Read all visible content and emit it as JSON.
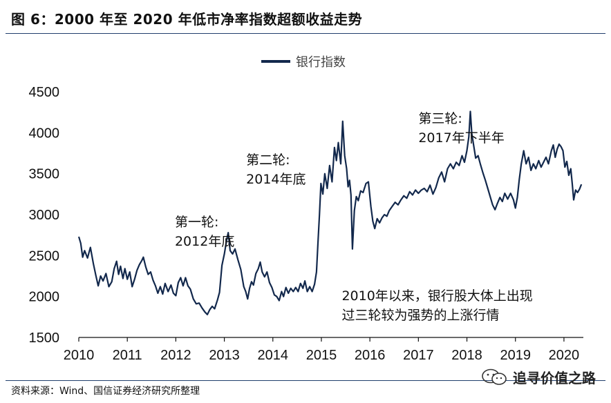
{
  "figure": {
    "title": "图 6：2000 年至 2020 年低市净率指数超额收益走势",
    "source": "资料来源：Wind、国信证券经济研究所整理",
    "watermark": "追寻价值之路",
    "watermark_icon": "wechat-icon"
  },
  "chart_data": {
    "type": "line",
    "title": "",
    "xlabel": "",
    "ylabel": "",
    "xlim": [
      2010,
      2020.4
    ],
    "ylim": [
      1500,
      4500
    ],
    "x_ticks": [
      "2010",
      "2011",
      "2012",
      "2013",
      "2014",
      "2015",
      "2016",
      "2017",
      "2018",
      "2019",
      "2020"
    ],
    "y_ticks": [
      "1500",
      "2000",
      "2500",
      "3000",
      "3500",
      "4000",
      "4500"
    ],
    "grid": false,
    "legend_position": "top-center",
    "series": [
      {
        "name": "银行指数",
        "color": "#12284c",
        "points": [
          [
            2010.0,
            2730
          ],
          [
            2010.04,
            2650
          ],
          [
            2010.08,
            2480
          ],
          [
            2010.12,
            2560
          ],
          [
            2010.18,
            2470
          ],
          [
            2010.24,
            2600
          ],
          [
            2010.3,
            2400
          ],
          [
            2010.35,
            2260
          ],
          [
            2010.4,
            2130
          ],
          [
            2010.45,
            2250
          ],
          [
            2010.5,
            2190
          ],
          [
            2010.56,
            2280
          ],
          [
            2010.62,
            2120
          ],
          [
            2010.68,
            2180
          ],
          [
            2010.73,
            2340
          ],
          [
            2010.78,
            2430
          ],
          [
            2010.82,
            2270
          ],
          [
            2010.86,
            2370
          ],
          [
            2010.91,
            2220
          ],
          [
            2010.95,
            2340
          ],
          [
            2011.0,
            2210
          ],
          [
            2011.05,
            2300
          ],
          [
            2011.1,
            2120
          ],
          [
            2011.15,
            2210
          ],
          [
            2011.2,
            2320
          ],
          [
            2011.25,
            2390
          ],
          [
            2011.3,
            2440
          ],
          [
            2011.33,
            2480
          ],
          [
            2011.38,
            2360
          ],
          [
            2011.43,
            2270
          ],
          [
            2011.48,
            2300
          ],
          [
            2011.53,
            2200
          ],
          [
            2011.58,
            2130
          ],
          [
            2011.63,
            2040
          ],
          [
            2011.68,
            2120
          ],
          [
            2011.73,
            2030
          ],
          [
            2011.78,
            2160
          ],
          [
            2011.84,
            2060
          ],
          [
            2011.9,
            2140
          ],
          [
            2011.95,
            2040
          ],
          [
            2012.0,
            2010
          ],
          [
            2012.05,
            2170
          ],
          [
            2012.1,
            2230
          ],
          [
            2012.15,
            2130
          ],
          [
            2012.2,
            2230
          ],
          [
            2012.25,
            2130
          ],
          [
            2012.3,
            2090
          ],
          [
            2012.36,
            1970
          ],
          [
            2012.42,
            1910
          ],
          [
            2012.48,
            1920
          ],
          [
            2012.54,
            1860
          ],
          [
            2012.6,
            1810
          ],
          [
            2012.65,
            1780
          ],
          [
            2012.7,
            1840
          ],
          [
            2012.75,
            1880
          ],
          [
            2012.8,
            1850
          ],
          [
            2012.86,
            1960
          ],
          [
            2012.9,
            2050
          ],
          [
            2012.95,
            2380
          ],
          [
            2013.0,
            2520
          ],
          [
            2013.05,
            2700
          ],
          [
            2013.08,
            2780
          ],
          [
            2013.12,
            2560
          ],
          [
            2013.17,
            2520
          ],
          [
            2013.22,
            2580
          ],
          [
            2013.28,
            2450
          ],
          [
            2013.34,
            2330
          ],
          [
            2013.4,
            2120
          ],
          [
            2013.44,
            2060
          ],
          [
            2013.48,
            1970
          ],
          [
            2013.52,
            2100
          ],
          [
            2013.56,
            2180
          ],
          [
            2013.6,
            2140
          ],
          [
            2013.65,
            2280
          ],
          [
            2013.7,
            2340
          ],
          [
            2013.74,
            2420
          ],
          [
            2013.78,
            2300
          ],
          [
            2013.83,
            2240
          ],
          [
            2013.88,
            2300
          ],
          [
            2013.93,
            2170
          ],
          [
            2013.98,
            2110
          ],
          [
            2014.03,
            2020
          ],
          [
            2014.08,
            2000
          ],
          [
            2014.13,
            1950
          ],
          [
            2014.18,
            2060
          ],
          [
            2014.22,
            2000
          ],
          [
            2014.27,
            2110
          ],
          [
            2014.32,
            2040
          ],
          [
            2014.37,
            2100
          ],
          [
            2014.42,
            2060
          ],
          [
            2014.47,
            2110
          ],
          [
            2014.52,
            2060
          ],
          [
            2014.57,
            2160
          ],
          [
            2014.62,
            2100
          ],
          [
            2014.66,
            2190
          ],
          [
            2014.71,
            2060
          ],
          [
            2014.76,
            2120
          ],
          [
            2014.81,
            2060
          ],
          [
            2014.86,
            2150
          ],
          [
            2014.9,
            2300
          ],
          [
            2014.93,
            2650
          ],
          [
            2014.96,
            3000
          ],
          [
            2014.99,
            3380
          ],
          [
            2015.03,
            3250
          ],
          [
            2015.07,
            3500
          ],
          [
            2015.12,
            3320
          ],
          [
            2015.17,
            3600
          ],
          [
            2015.22,
            3400
          ],
          [
            2015.27,
            3820
          ],
          [
            2015.31,
            3660
          ],
          [
            2015.35,
            3880
          ],
          [
            2015.4,
            3620
          ],
          [
            2015.44,
            4140
          ],
          [
            2015.48,
            3720
          ],
          [
            2015.52,
            3560
          ],
          [
            2015.55,
            3340
          ],
          [
            2015.58,
            3420
          ],
          [
            2015.61,
            3240
          ],
          [
            2015.64,
            2580
          ],
          [
            2015.68,
            3050
          ],
          [
            2015.72,
            3220
          ],
          [
            2015.76,
            3170
          ],
          [
            2015.81,
            3290
          ],
          [
            2015.86,
            3270
          ],
          [
            2015.92,
            3380
          ],
          [
            2015.97,
            3400
          ],
          [
            2016.02,
            3100
          ],
          [
            2016.06,
            2920
          ],
          [
            2016.1,
            2830
          ],
          [
            2016.15,
            2950
          ],
          [
            2016.2,
            2900
          ],
          [
            2016.25,
            2960
          ],
          [
            2016.3,
            3000
          ],
          [
            2016.35,
            2980
          ],
          [
            2016.4,
            3050
          ],
          [
            2016.46,
            3100
          ],
          [
            2016.52,
            3150
          ],
          [
            2016.58,
            3120
          ],
          [
            2016.64,
            3180
          ],
          [
            2016.7,
            3230
          ],
          [
            2016.76,
            3200
          ],
          [
            2016.82,
            3280
          ],
          [
            2016.88,
            3240
          ],
          [
            2016.94,
            3300
          ],
          [
            2017.0,
            3260
          ],
          [
            2017.06,
            3300
          ],
          [
            2017.12,
            3320
          ],
          [
            2017.18,
            3280
          ],
          [
            2017.24,
            3360
          ],
          [
            2017.3,
            3250
          ],
          [
            2017.36,
            3330
          ],
          [
            2017.42,
            3450
          ],
          [
            2017.48,
            3520
          ],
          [
            2017.54,
            3400
          ],
          [
            2017.6,
            3560
          ],
          [
            2017.66,
            3620
          ],
          [
            2017.72,
            3560
          ],
          [
            2017.78,
            3640
          ],
          [
            2017.84,
            3600
          ],
          [
            2017.9,
            3720
          ],
          [
            2017.95,
            3640
          ],
          [
            2018.0,
            3780
          ],
          [
            2018.04,
            3950
          ],
          [
            2018.07,
            4260
          ],
          [
            2018.1,
            3990
          ],
          [
            2018.14,
            3840
          ],
          [
            2018.18,
            3690
          ],
          [
            2018.23,
            3720
          ],
          [
            2018.28,
            3610
          ],
          [
            2018.33,
            3510
          ],
          [
            2018.38,
            3420
          ],
          [
            2018.43,
            3320
          ],
          [
            2018.48,
            3220
          ],
          [
            2018.53,
            3120
          ],
          [
            2018.58,
            3060
          ],
          [
            2018.63,
            3140
          ],
          [
            2018.68,
            3210
          ],
          [
            2018.73,
            3160
          ],
          [
            2018.78,
            3260
          ],
          [
            2018.84,
            3190
          ],
          [
            2018.9,
            3260
          ],
          [
            2018.96,
            3180
          ],
          [
            2019.0,
            3080
          ],
          [
            2019.04,
            3210
          ],
          [
            2019.08,
            3430
          ],
          [
            2019.12,
            3620
          ],
          [
            2019.17,
            3780
          ],
          [
            2019.22,
            3620
          ],
          [
            2019.27,
            3700
          ],
          [
            2019.32,
            3540
          ],
          [
            2019.37,
            3620
          ],
          [
            2019.42,
            3560
          ],
          [
            2019.48,
            3660
          ],
          [
            2019.53,
            3580
          ],
          [
            2019.58,
            3640
          ],
          [
            2019.63,
            3700
          ],
          [
            2019.68,
            3620
          ],
          [
            2019.74,
            3780
          ],
          [
            2019.78,
            3850
          ],
          [
            2019.82,
            3700
          ],
          [
            2019.86,
            3800
          ],
          [
            2019.9,
            3860
          ],
          [
            2019.94,
            3830
          ],
          [
            2019.98,
            3780
          ],
          [
            2020.02,
            3580
          ],
          [
            2020.06,
            3650
          ],
          [
            2020.1,
            3480
          ],
          [
            2020.14,
            3560
          ],
          [
            2020.17,
            3380
          ],
          [
            2020.2,
            3180
          ],
          [
            2020.24,
            3300
          ],
          [
            2020.28,
            3270
          ],
          [
            2020.32,
            3310
          ],
          [
            2020.36,
            3370
          ]
        ]
      }
    ],
    "annotations": [
      {
        "lines": [
          "第一轮:",
          "2012年底"
        ],
        "at": [
          2011.98,
          2855
        ]
      },
      {
        "lines": [
          "第二轮:",
          "2014年底"
        ],
        "at": [
          2013.45,
          3615
        ]
      },
      {
        "lines": [
          "第三轮:",
          "2017年下半年"
        ],
        "at": [
          2017.0,
          4120
        ]
      },
      {
        "lines": [
          "2010年以来，银行股大体上出现",
          "过三轮较为强势的上涨行情"
        ],
        "at": [
          2015.42,
          1955
        ]
      }
    ]
  }
}
